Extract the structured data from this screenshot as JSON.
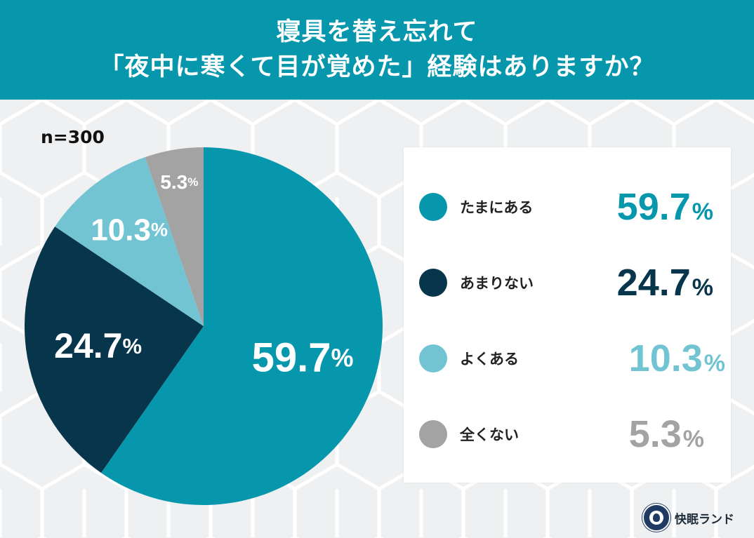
{
  "header": {
    "line1": "寝具を替え忘れて",
    "line2": "「夜中に寒くて目が覚めた」経験はありますか？"
  },
  "sample_size": "n=300",
  "colors": {
    "header_bg": "#0797ad",
    "tamani": "#0797ad",
    "amari": "#07354b",
    "yoku": "#72c4d2",
    "mattaku": "#a3a3a3"
  },
  "chart_data": {
    "type": "pie",
    "title": "寝具を替え忘れて「夜中に寒くて目が覚めた」経験はありますか？",
    "unit": "%",
    "slices": [
      {
        "label": "たまにある",
        "value": 59.7,
        "display": "59.7",
        "color": "#0797ad"
      },
      {
        "label": "あまりない",
        "value": 24.7,
        "display": "24.7",
        "color": "#07354b"
      },
      {
        "label": "よくある",
        "value": 10.3,
        "display": "10.3",
        "color": "#72c4d2"
      },
      {
        "label": "全くない",
        "value": 5.3,
        "display": "5.3",
        "color": "#a3a3a3"
      }
    ],
    "legend_position": "right"
  },
  "brand": {
    "name": "快眠ランド",
    "logo_icon": "kaimin-land-logo-icon"
  }
}
